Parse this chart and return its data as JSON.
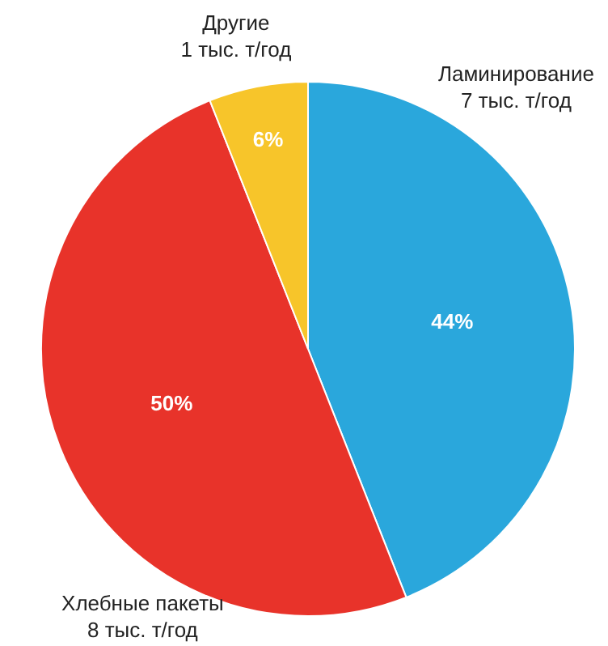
{
  "chart_data": {
    "type": "pie",
    "categories": [
      "Ламинирование\n7 тыс. т/год",
      "Хлебные пакеты\n8 тыс. т/год",
      "Другие\n1 тыс. т/год"
    ],
    "values": [
      44,
      50,
      6
    ],
    "colors": [
      "#2aa7dc",
      "#e8332a",
      "#f7c52a"
    ],
    "value_labels": [
      "44%",
      "50%",
      "6%"
    ]
  }
}
